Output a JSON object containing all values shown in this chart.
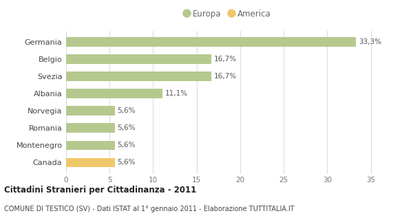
{
  "categories": [
    "Canada",
    "Montenegro",
    "Romania",
    "Norvegia",
    "Albania",
    "Svezia",
    "Belgio",
    "Germania"
  ],
  "values": [
    5.6,
    5.6,
    5.6,
    5.6,
    11.1,
    16.7,
    16.7,
    33.3
  ],
  "labels": [
    "5,6%",
    "5,6%",
    "5,6%",
    "5,6%",
    "11,1%",
    "16,7%",
    "16,7%",
    "33,3%"
  ],
  "colors": [
    "#f0c86a",
    "#b5c98e",
    "#b5c98e",
    "#b5c98e",
    "#b5c98e",
    "#b5c98e",
    "#b5c98e",
    "#b5c98e"
  ],
  "europa_color": "#b5c98e",
  "america_color": "#f0c86a",
  "title": "Cittadini Stranieri per Cittadinanza - 2011",
  "subtitle": "COMUNE DI TESTICO (SV) - Dati ISTAT al 1° gennaio 2011 - Elaborazione TUTTITALIA.IT",
  "xlim": [
    0,
    37
  ],
  "xticks": [
    0,
    5,
    10,
    15,
    20,
    25,
    30,
    35
  ],
  "legend_europa": "Europa",
  "legend_america": "America",
  "background_color": "#ffffff",
  "grid_color": "#dddddd"
}
